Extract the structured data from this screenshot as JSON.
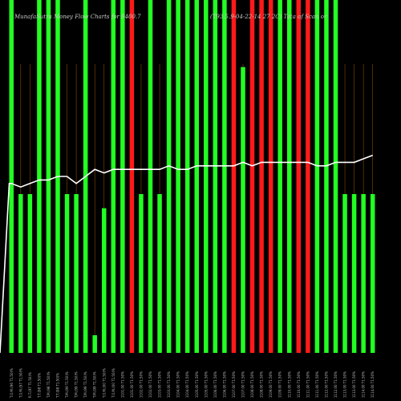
{
  "chart_data": {
    "type": "bar",
    "title_left": "MunafaSutra Money Flow  Charts for 9400.7",
    "title_right": "(T93.5.9-04-22-14 27 2C) Tata of Scan or",
    "colors": {
      "up": "#22ff22",
      "down": "#ff1a1a",
      "line": "#ffffff",
      "grid": "#8a4a00",
      "background": "#000000"
    },
    "ylim": [
      0,
      100
    ],
    "categories": [
      "T.O.M.(96 T1.50)%",
      "T.O.M.(97 T1.50)%",
      "R.T.(97 T1.50)%",
      "T.T.(98 T1.50)%",
      "T.M.(98 T1.50)%",
      "T.T.(98 T1.50)%",
      "T.M.(99 T1.50)%",
      "T.M.(99 T1.50)%",
      "T.M.(99 T1.50)%",
      "T.M.(99 T1.50)%",
      "T.O.M.(00 T1.50)%",
      "T.O.M.(00 T1.50)%",
      "1101.00 T1.50%",
      "1101.00 T1.50%",
      "1102.00 T1.50%",
      "1102.00 T1.50%",
      "1103.00 T1.50%",
      "1103.00 T1.50%",
      "1104.00 T1.50%",
      "1104.00 T1.50%",
      "1105.00 T1.50%",
      "1105.00 T1.50%",
      "1106.00 T1.50%",
      "1106.00 T1.50%",
      "1107.00 T1.50%",
      "1107.00 T1.50%",
      "1108.00 T1.50%",
      "1108.00 T1.50%",
      "1109.00 T1.50%",
      "1109.00 T1.50%",
      "1110.00 T1.50%",
      "1110.00 T1.50%",
      "1111.00 T1.50%",
      "1111.00 T1.50%",
      "1112.00 T1.50%",
      "1112.00 T1.50%",
      "1113.00 T1.50%",
      "1113.00 T1.50%",
      "1114.00 T1.50%",
      "1114.00 T1.50%"
    ],
    "values": [
      100,
      45,
      45,
      100,
      100,
      100,
      45,
      45,
      100,
      5,
      41,
      100,
      100,
      100,
      45,
      100,
      45,
      100,
      100,
      100,
      100,
      100,
      100,
      100,
      100,
      81,
      100,
      100,
      100,
      100,
      100,
      100,
      100,
      100,
      100,
      100,
      45,
      45,
      45,
      45
    ],
    "directions": [
      "up",
      "up",
      "up",
      "up",
      "up",
      "up",
      "up",
      "up",
      "up",
      "up",
      "up",
      "up",
      "up",
      "down",
      "up",
      "up",
      "up",
      "up",
      "up",
      "up",
      "up",
      "up",
      "up",
      "up",
      "down",
      "up",
      "down",
      "down",
      "down",
      "up",
      "up",
      "down",
      "down",
      "up",
      "up",
      "up",
      "up",
      "up",
      "up",
      "up"
    ],
    "line": [
      48,
      47,
      48,
      49,
      49,
      50,
      50,
      48,
      50,
      52,
      51,
      52,
      52,
      52,
      52,
      52,
      52,
      53,
      52,
      52,
      53,
      53,
      53,
      53,
      53,
      54,
      53,
      54,
      54,
      54,
      54,
      54,
      54,
      53,
      53,
      54,
      54,
      54,
      55,
      56
    ],
    "line_start": 2
  }
}
